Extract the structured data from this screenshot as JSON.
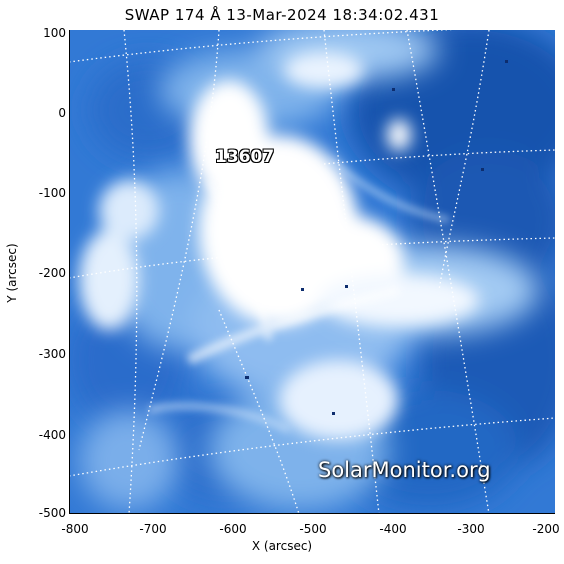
{
  "title": "SWAP 174 Å 13-Mar-2024 18:34:02.431",
  "x_axis": {
    "title": "X (arcsec)",
    "ticks": [
      "-800",
      "-700",
      "-600",
      "-500",
      "-400",
      "-300",
      "-200"
    ],
    "range": [
      -800,
      -200
    ]
  },
  "y_axis": {
    "title": "Y (arcsec)",
    "ticks": [
      "100",
      "0",
      "-100",
      "-200",
      "-300",
      "-400",
      "-500"
    ],
    "range": [
      -500,
      100
    ]
  },
  "region_label": "13607",
  "watermark": "SolarMonitor.org",
  "colors": {
    "deep": "#1d5cb8",
    "mid": "#3b82dc",
    "light": "#a8cdf3",
    "bright": "#ffffff"
  }
}
